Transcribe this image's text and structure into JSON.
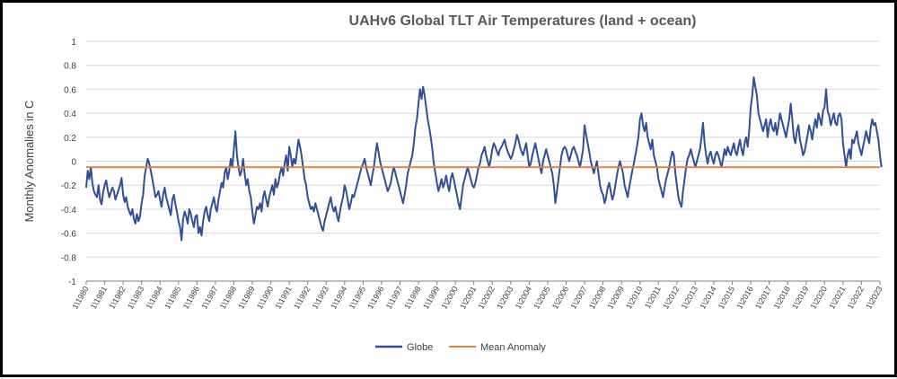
{
  "chart_data": {
    "type": "line",
    "title": "UAHv6 Global TLT Air Temperatures (land + ocean)",
    "xlabel": "",
    "ylabel": "Monthly Anomalies in C",
    "ylim": [
      -1,
      1
    ],
    "yticks": [
      1,
      0.8,
      0.6,
      0.4,
      0.2,
      0,
      -0.2,
      -0.4,
      -0.6,
      -0.8,
      -1
    ],
    "x_start_year": 1980,
    "x_end_year": 2023,
    "x_tick_labels": [
      "1\\1980",
      "1\\1981",
      "1\\1982",
      "1\\1983",
      "1\\1984",
      "1\\1985",
      "1\\1986",
      "1\\1987",
      "1\\1988",
      "1\\1989",
      "1\\1990",
      "1\\1991",
      "1\\1992",
      "1\\1993",
      "1\\1994",
      "1\\1995",
      "1\\1996",
      "1\\1997",
      "1\\1998",
      "1\\1999",
      "1\\2000",
      "1\\2001",
      "1\\2002",
      "1\\2003",
      "1\\2004",
      "1\\2005",
      "1\\2006",
      "1\\2007",
      "1\\2008",
      "1\\2009",
      "1\\2010",
      "1\\2011",
      "1\\2012",
      "1\\2013",
      "1\\2014",
      "1\\2015",
      "1\\2016",
      "1\\2017",
      "1\\2018",
      "1\\2019",
      "1\\2020",
      "1\\2021",
      "1\\2022",
      "1\\2023"
    ],
    "grid": true,
    "legend_position": "bottom",
    "series": [
      {
        "name": "Globe",
        "color": "#2F4F9A",
        "values_by_year": [
          [
            -0.22,
            -0.08,
            -0.15,
            -0.05,
            -0.18,
            -0.25,
            -0.28,
            -0.3,
            -0.2,
            -0.32,
            -0.36,
            -0.26
          ],
          [
            -0.2,
            -0.16,
            -0.24,
            -0.3,
            -0.26,
            -0.22,
            -0.25,
            -0.32,
            -0.28,
            -0.24,
            -0.2,
            -0.14
          ],
          [
            -0.28,
            -0.34,
            -0.3,
            -0.38,
            -0.42,
            -0.45,
            -0.4,
            -0.48,
            -0.52,
            -0.44,
            -0.5,
            -0.46
          ],
          [
            -0.35,
            -0.28,
            -0.12,
            -0.05,
            0.02,
            -0.02,
            -0.08,
            -0.15,
            -0.22,
            -0.3,
            -0.28,
            -0.25
          ],
          [
            -0.32,
            -0.38,
            -0.28,
            -0.22,
            -0.3,
            -0.35,
            -0.4,
            -0.45,
            -0.32,
            -0.28,
            -0.36,
            -0.42
          ],
          [
            -0.5,
            -0.55,
            -0.66,
            -0.48,
            -0.42,
            -0.46,
            -0.52,
            -0.4,
            -0.44,
            -0.5,
            -0.55,
            -0.46
          ],
          [
            -0.45,
            -0.6,
            -0.55,
            -0.62,
            -0.5,
            -0.42,
            -0.38,
            -0.45,
            -0.5,
            -0.4,
            -0.35,
            -0.3
          ],
          [
            -0.38,
            -0.42,
            -0.32,
            -0.25,
            -0.18,
            -0.22,
            -0.1,
            -0.05,
            -0.15,
            -0.08,
            0.02,
            -0.05
          ],
          [
            0.1,
            0.25,
            0.05,
            -0.05,
            -0.12,
            -0.08,
            0.02,
            -0.1,
            -0.2,
            -0.15,
            -0.25,
            -0.3
          ],
          [
            -0.42,
            -0.52,
            -0.45,
            -0.38,
            -0.4,
            -0.35,
            -0.42,
            -0.3,
            -0.25,
            -0.32,
            -0.38,
            -0.3
          ],
          [
            -0.25,
            -0.2,
            -0.28,
            -0.15,
            -0.22,
            -0.18,
            -0.1,
            -0.05,
            -0.12,
            -0.02,
            0.05,
            -0.08
          ],
          [
            0.12,
            0.05,
            -0.05,
            0.02,
            -0.02,
            0.08,
            0.18,
            0.12,
            0.05,
            -0.05,
            -0.15,
            -0.2
          ],
          [
            -0.3,
            -0.35,
            -0.4,
            -0.38,
            -0.42,
            -0.35,
            -0.4,
            -0.45,
            -0.5,
            -0.55,
            -0.58,
            -0.5
          ],
          [
            -0.45,
            -0.4,
            -0.35,
            -0.3,
            -0.38,
            -0.42,
            -0.38,
            -0.45,
            -0.5,
            -0.42,
            -0.35,
            -0.3
          ],
          [
            -0.2,
            -0.25,
            -0.32,
            -0.4,
            -0.35,
            -0.28,
            -0.3,
            -0.25,
            -0.2,
            -0.15,
            -0.1,
            -0.05
          ],
          [
            -0.02,
            0.02,
            -0.05,
            -0.1,
            -0.15,
            -0.2,
            -0.12,
            -0.05,
            0.05,
            0.15,
            0.08,
            0.0
          ],
          [
            -0.05,
            -0.1,
            -0.15,
            -0.2,
            -0.25,
            -0.22,
            -0.18,
            -0.1,
            -0.05,
            -0.1,
            -0.15,
            -0.2
          ],
          [
            -0.25,
            -0.3,
            -0.35,
            -0.28,
            -0.2,
            -0.1,
            -0.05,
            0.0,
            0.05,
            0.15,
            0.28,
            0.35
          ],
          [
            0.48,
            0.6,
            0.52,
            0.62,
            0.55,
            0.45,
            0.35,
            0.28,
            0.2,
            0.1,
            -0.02,
            -0.1
          ],
          [
            -0.18,
            -0.25,
            -0.2,
            -0.15,
            -0.22,
            -0.18,
            -0.12,
            -0.2,
            -0.25,
            -0.15,
            -0.1,
            -0.15
          ],
          [
            -0.22,
            -0.28,
            -0.35,
            -0.4,
            -0.3,
            -0.2,
            -0.15,
            -0.1,
            -0.05,
            -0.1,
            -0.15,
            -0.2
          ],
          [
            -0.22,
            -0.18,
            -0.12,
            -0.05,
            -0.02,
            0.05,
            0.08,
            0.12,
            0.05,
            0.0,
            -0.05,
            0.02
          ],
          [
            0.1,
            0.15,
            0.12,
            0.08,
            0.05,
            0.1,
            0.12,
            0.15,
            0.18,
            0.12,
            0.08,
            0.05
          ],
          [
            0.02,
            0.05,
            0.1,
            0.15,
            0.22,
            0.18,
            0.12,
            0.08,
            0.05,
            0.1,
            0.15,
            0.05
          ],
          [
            -0.05,
            -0.02,
            0.05,
            0.1,
            0.15,
            0.08,
            0.02,
            -0.05,
            -0.1,
            0.0,
            0.05,
            0.1
          ],
          [
            0.05,
            0.0,
            -0.05,
            -0.1,
            -0.2,
            -0.35,
            -0.25,
            -0.15,
            -0.05,
            0.05,
            0.1,
            0.12
          ],
          [
            0.1,
            0.05,
            0.0,
            0.05,
            0.1,
            0.12,
            0.08,
            0.05,
            0.0,
            -0.05,
            0.02,
            0.1
          ],
          [
            0.3,
            0.22,
            0.15,
            0.08,
            0.0,
            -0.05,
            -0.1,
            -0.05,
            0.0,
            -0.1,
            -0.2,
            -0.25
          ],
          [
            -0.28,
            -0.35,
            -0.3,
            -0.22,
            -0.18,
            -0.25,
            -0.32,
            -0.28,
            -0.2,
            -0.12,
            -0.05,
            0.0
          ],
          [
            -0.05,
            -0.1,
            -0.2,
            -0.25,
            -0.3,
            -0.22,
            -0.15,
            -0.08,
            -0.02,
            0.05,
            0.12,
            0.2
          ],
          [
            0.35,
            0.4,
            0.3,
            0.25,
            0.32,
            0.2,
            0.15,
            0.1,
            0.18,
            0.05,
            0.0,
            -0.05
          ],
          [
            -0.15,
            -0.2,
            -0.25,
            -0.3,
            -0.22,
            -0.15,
            -0.1,
            -0.05,
            0.02,
            0.08,
            0.05,
            -0.1
          ],
          [
            -0.2,
            -0.3,
            -0.35,
            -0.38,
            -0.25,
            -0.15,
            -0.05,
            0.02,
            0.05,
            0.1,
            0.05,
            0.0
          ],
          [
            -0.05,
            0.0,
            0.05,
            0.1,
            0.2,
            0.32,
            0.15,
            0.05,
            -0.02,
            0.05,
            0.08,
            0.02
          ],
          [
            -0.02,
            0.05,
            0.08,
            0.05,
            0.0,
            -0.05,
            0.02,
            0.1,
            0.05,
            0.12,
            0.08,
            0.05
          ],
          [
            0.1,
            0.15,
            0.08,
            0.05,
            0.12,
            0.18,
            0.1,
            0.05,
            0.15,
            0.2,
            0.12,
            0.25
          ],
          [
            0.45,
            0.55,
            0.7,
            0.62,
            0.55,
            0.4,
            0.35,
            0.3,
            0.25,
            0.3,
            0.35,
            0.2
          ],
          [
            0.3,
            0.35,
            0.28,
            0.25,
            0.32,
            0.22,
            0.3,
            0.4,
            0.35,
            0.3,
            0.25,
            0.2
          ],
          [
            0.28,
            0.35,
            0.48,
            0.35,
            0.2,
            0.15,
            0.25,
            0.3,
            0.18,
            0.12,
            0.05,
            0.08
          ],
          [
            0.15,
            0.22,
            0.3,
            0.25,
            0.18,
            0.28,
            0.35,
            0.28,
            0.4,
            0.35,
            0.3,
            0.42
          ],
          [
            0.45,
            0.6,
            0.42,
            0.38,
            0.3,
            0.35,
            0.4,
            0.32,
            0.3,
            0.38,
            0.4,
            0.35
          ],
          [
            0.15,
            0.05,
            -0.05,
            0.05,
            0.1,
            0.02,
            0.18,
            0.15,
            0.2,
            0.25,
            0.15,
            0.1
          ],
          [
            0.05,
            0.12,
            0.18,
            0.25,
            0.2,
            0.15,
            0.28,
            0.35,
            0.3,
            0.32,
            0.25,
            0.18
          ],
          [
            0.05,
            -0.05
          ]
        ]
      },
      {
        "name": "Mean Anomaly",
        "color": "#ED7D31",
        "constant_value": -0.05
      }
    ]
  }
}
